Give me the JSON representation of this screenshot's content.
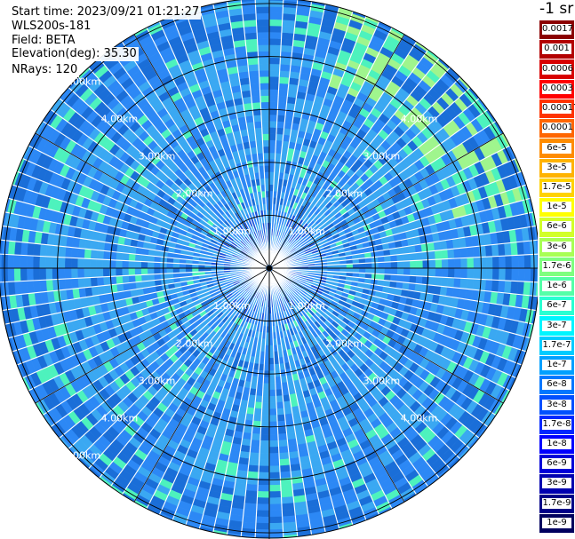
{
  "info": {
    "start_time": "Start time: 2023/09/21 01:21:27",
    "instrument": "WLS200s-181",
    "field": "Field: BETA",
    "elevation": "Elevation(deg): 35.30",
    "nrays": "NRays: 120"
  },
  "colorbar": {
    "unit": "-1 sr",
    "labels": [
      "0.0017",
      "0.001",
      "0.0006",
      "0.0003",
      "0.00017",
      "0.0001",
      "6e-5",
      "3e-5",
      "1.7e-5",
      "1e-5",
      "6e-6",
      "3e-6",
      "1.7e-6",
      "1e-6",
      "6e-7",
      "3e-7",
      "1.7e-7",
      "1e-7",
      "6e-8",
      "3e-8",
      "1.7e-8",
      "1e-8",
      "6e-9",
      "3e-9",
      "1.7e-9",
      "1e-9"
    ],
    "colors": [
      "#8b0000",
      "#b30000",
      "#d80000",
      "#ff0000",
      "#ff3300",
      "#ff6600",
      "#ff8c00",
      "#ffb300",
      "#ffd200",
      "#ffff00",
      "#d2ff2a",
      "#a8ff55",
      "#7fff7f",
      "#55ffa8",
      "#2affd2",
      "#00f5ff",
      "#00ccff",
      "#00a0ff",
      "#0078ff",
      "#0050ff",
      "#0028ff",
      "#0000ff",
      "#0000d8",
      "#0000b0",
      "#000088",
      "#00005f"
    ]
  },
  "chart_data": {
    "type": "polar_ppi",
    "field": "BETA",
    "n_rays": 120,
    "elevation_deg": 35.3,
    "range_rings_km": [
      1.0,
      2.0,
      3.0,
      4.0,
      5.0
    ],
    "ring_labels": [
      "1.00km",
      "2.00km",
      "3.00km",
      "4.00km",
      "5.00km"
    ],
    "max_range_km": 5.1,
    "spoke_interval_deg": 30,
    "color_scale": "log",
    "value_range": [
      1e-09,
      0.0017
    ],
    "typical_values": {
      "inner_1km": 6e-08,
      "mid_2_4km": 3e-08,
      "outer_ne_edge": 1.7e-07
    },
    "palette": {
      "core": "#2c88f5",
      "mid": "#3aa8f2",
      "outer": "#1a6ed8",
      "high": "#4df2bd",
      "bright": "#9ff58d",
      "low": "#1a50d8"
    }
  }
}
